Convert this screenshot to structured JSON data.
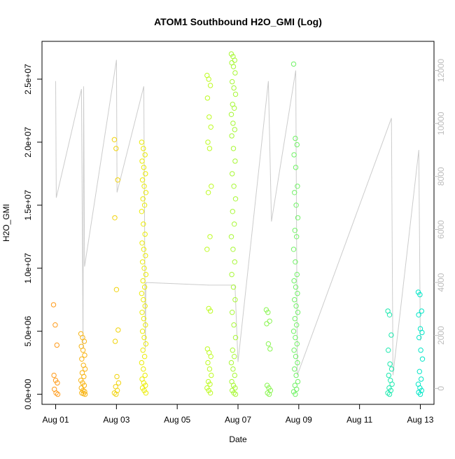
{
  "chart_data": {
    "type": "scatter",
    "title": "ATOM1 Southbound H2O_GMI (Log)",
    "xlabel": "Date",
    "ylabel": "H2O_GMI",
    "x_ticks": [
      "Aug 01",
      "Aug 03",
      "Aug 05",
      "Aug 07",
      "Aug 09",
      "Aug 11",
      "Aug 13"
    ],
    "x_tick_days": [
      1,
      3,
      5,
      7,
      9,
      11,
      13
    ],
    "xlim_days": [
      0.55,
      13.45
    ],
    "y_ticks": [
      "0.0e+00",
      "5.0e+06",
      "1.0e+07",
      "1.5e+07",
      "2.0e+07",
      "2.5e+07"
    ],
    "y_tick_values": [
      0,
      5000000,
      10000000,
      15000000,
      20000000,
      25000000
    ],
    "ylim": [
      -800000,
      28000000
    ],
    "y2_ticks": [
      "0",
      "2000",
      "4000",
      "6000",
      "8000",
      "10000",
      "12000"
    ],
    "y2_tick_values": [
      0,
      2000,
      4000,
      6000,
      8000,
      10000,
      12000
    ],
    "y2lim": [
      -600,
      13100
    ],
    "colors": {
      "altitude_line": "#cccccc",
      "axis": "#000000",
      "right_axis": "#bdbdbd",
      "marker_start": "#ff9a1a",
      "marker_mid": "#e6ff00",
      "marker_end": "#00e6c8"
    },
    "flights": [
      {
        "day": 1.0,
        "values": [
          7100000,
          5500000,
          3900000,
          1500000,
          1100000,
          900000,
          400000,
          100000,
          0
        ]
      },
      {
        "day": 1.9,
        "values": [
          4800000,
          4500000,
          4200000,
          3800000,
          3500000,
          3100000,
          2800000,
          2300000,
          2000000,
          1700000,
          1400000,
          1100000,
          900000,
          700000,
          500000,
          300000,
          200000,
          100000,
          50000,
          0
        ]
      },
      {
        "day": 3.0,
        "values": [
          20200000,
          19500000,
          17000000,
          14000000,
          8300000,
          5100000,
          4200000,
          1400000,
          900000,
          600000,
          300000,
          100000,
          0
        ]
      },
      {
        "day": 3.9,
        "values": [
          20000000,
          19500000,
          19000000,
          18500000,
          18000000,
          17500000,
          17000000,
          16500000,
          16000000,
          15500000,
          15000000,
          14500000,
          13500000,
          12700000,
          12000000,
          11500000,
          11000000,
          10500000,
          10000000,
          9500000,
          9000000,
          8500000,
          8000000,
          7500000,
          7000000,
          6500000,
          6000000,
          5500000,
          5000000,
          4500000,
          4000000,
          3500000,
          3000000,
          2500000,
          2000000,
          1500000,
          1200000,
          900000,
          700000,
          500000,
          300000,
          100000
        ]
      },
      {
        "day": 6.05,
        "values": [
          25300000,
          25000000,
          24500000,
          23500000,
          22000000,
          21200000,
          20000000,
          19500000,
          16500000,
          16000000,
          12500000,
          11500000,
          6800000,
          6600000,
          3600000,
          3300000,
          3000000,
          2500000,
          2000000,
          1500000,
          1000000,
          800000,
          500000,
          300000,
          100000
        ]
      },
      {
        "day": 6.85,
        "values": [
          27000000,
          26800000,
          26500000,
          26300000,
          26000000,
          25500000,
          24800000,
          24300000,
          23800000,
          23000000,
          22700000,
          22200000,
          21500000,
          21000000,
          20500000,
          19500000,
          18500000,
          17500000,
          16500000,
          15500000,
          14500000,
          13500000,
          12500000,
          11500000,
          10500000,
          9500000,
          8500000,
          7500000,
          6500000,
          5500000,
          4500000,
          3500000,
          3000000,
          2500000,
          2000000,
          1500000,
          1000000,
          700000,
          500000,
          300000,
          100000,
          0
        ]
      },
      {
        "day": 8.0,
        "values": [
          6700000,
          6500000,
          5800000,
          5600000,
          4000000,
          3600000,
          700000,
          500000,
          300000,
          100000,
          0
        ]
      },
      {
        "day": 8.9,
        "values": [
          26200000,
          20300000,
          19800000,
          19000000,
          18000000,
          16500000,
          16000000,
          15000000,
          14000000,
          13000000,
          12500000,
          11500000,
          10500000,
          9500000,
          9000000,
          8500000,
          8000000,
          7500000,
          7000000,
          6500000,
          6000000,
          5500000,
          5000000,
          4500000,
          4000000,
          3500000,
          3000000,
          2500000,
          2000000,
          1500000,
          1000000,
          700000,
          400000,
          200000,
          0
        ]
      },
      {
        "day": 12.0,
        "values": [
          6600000,
          6300000,
          4700000,
          3500000,
          2400000,
          2000000,
          1500000,
          1100000,
          800000,
          500000,
          300000,
          100000,
          0
        ]
      },
      {
        "day": 13.0,
        "values": [
          8100000,
          7900000,
          6600000,
          6300000,
          5200000,
          4900000,
          4500000,
          3500000,
          2800000,
          1800000,
          1200000,
          800000,
          500000,
          300000,
          150000,
          0
        ]
      }
    ],
    "altitude_trace": [
      [
        1.0,
        11600
      ],
      [
        1.02,
        7200
      ],
      [
        1.85,
        11300
      ],
      [
        1.9,
        1500
      ],
      [
        1.92,
        11400
      ],
      [
        1.95,
        4600
      ],
      [
        3.0,
        12400
      ],
      [
        3.02,
        7400
      ],
      [
        3.9,
        11400
      ],
      [
        3.95,
        1500
      ],
      [
        3.97,
        4000
      ],
      [
        6.05,
        3900
      ],
      [
        6.9,
        3900
      ],
      [
        7.0,
        1000
      ],
      [
        8.0,
        11600
      ],
      [
        8.1,
        6300
      ],
      [
        8.9,
        12000
      ],
      [
        8.95,
        500
      ],
      [
        12.05,
        10200
      ],
      [
        12.1,
        500
      ],
      [
        12.95,
        9000
      ],
      [
        13.0,
        1800
      ]
    ]
  }
}
